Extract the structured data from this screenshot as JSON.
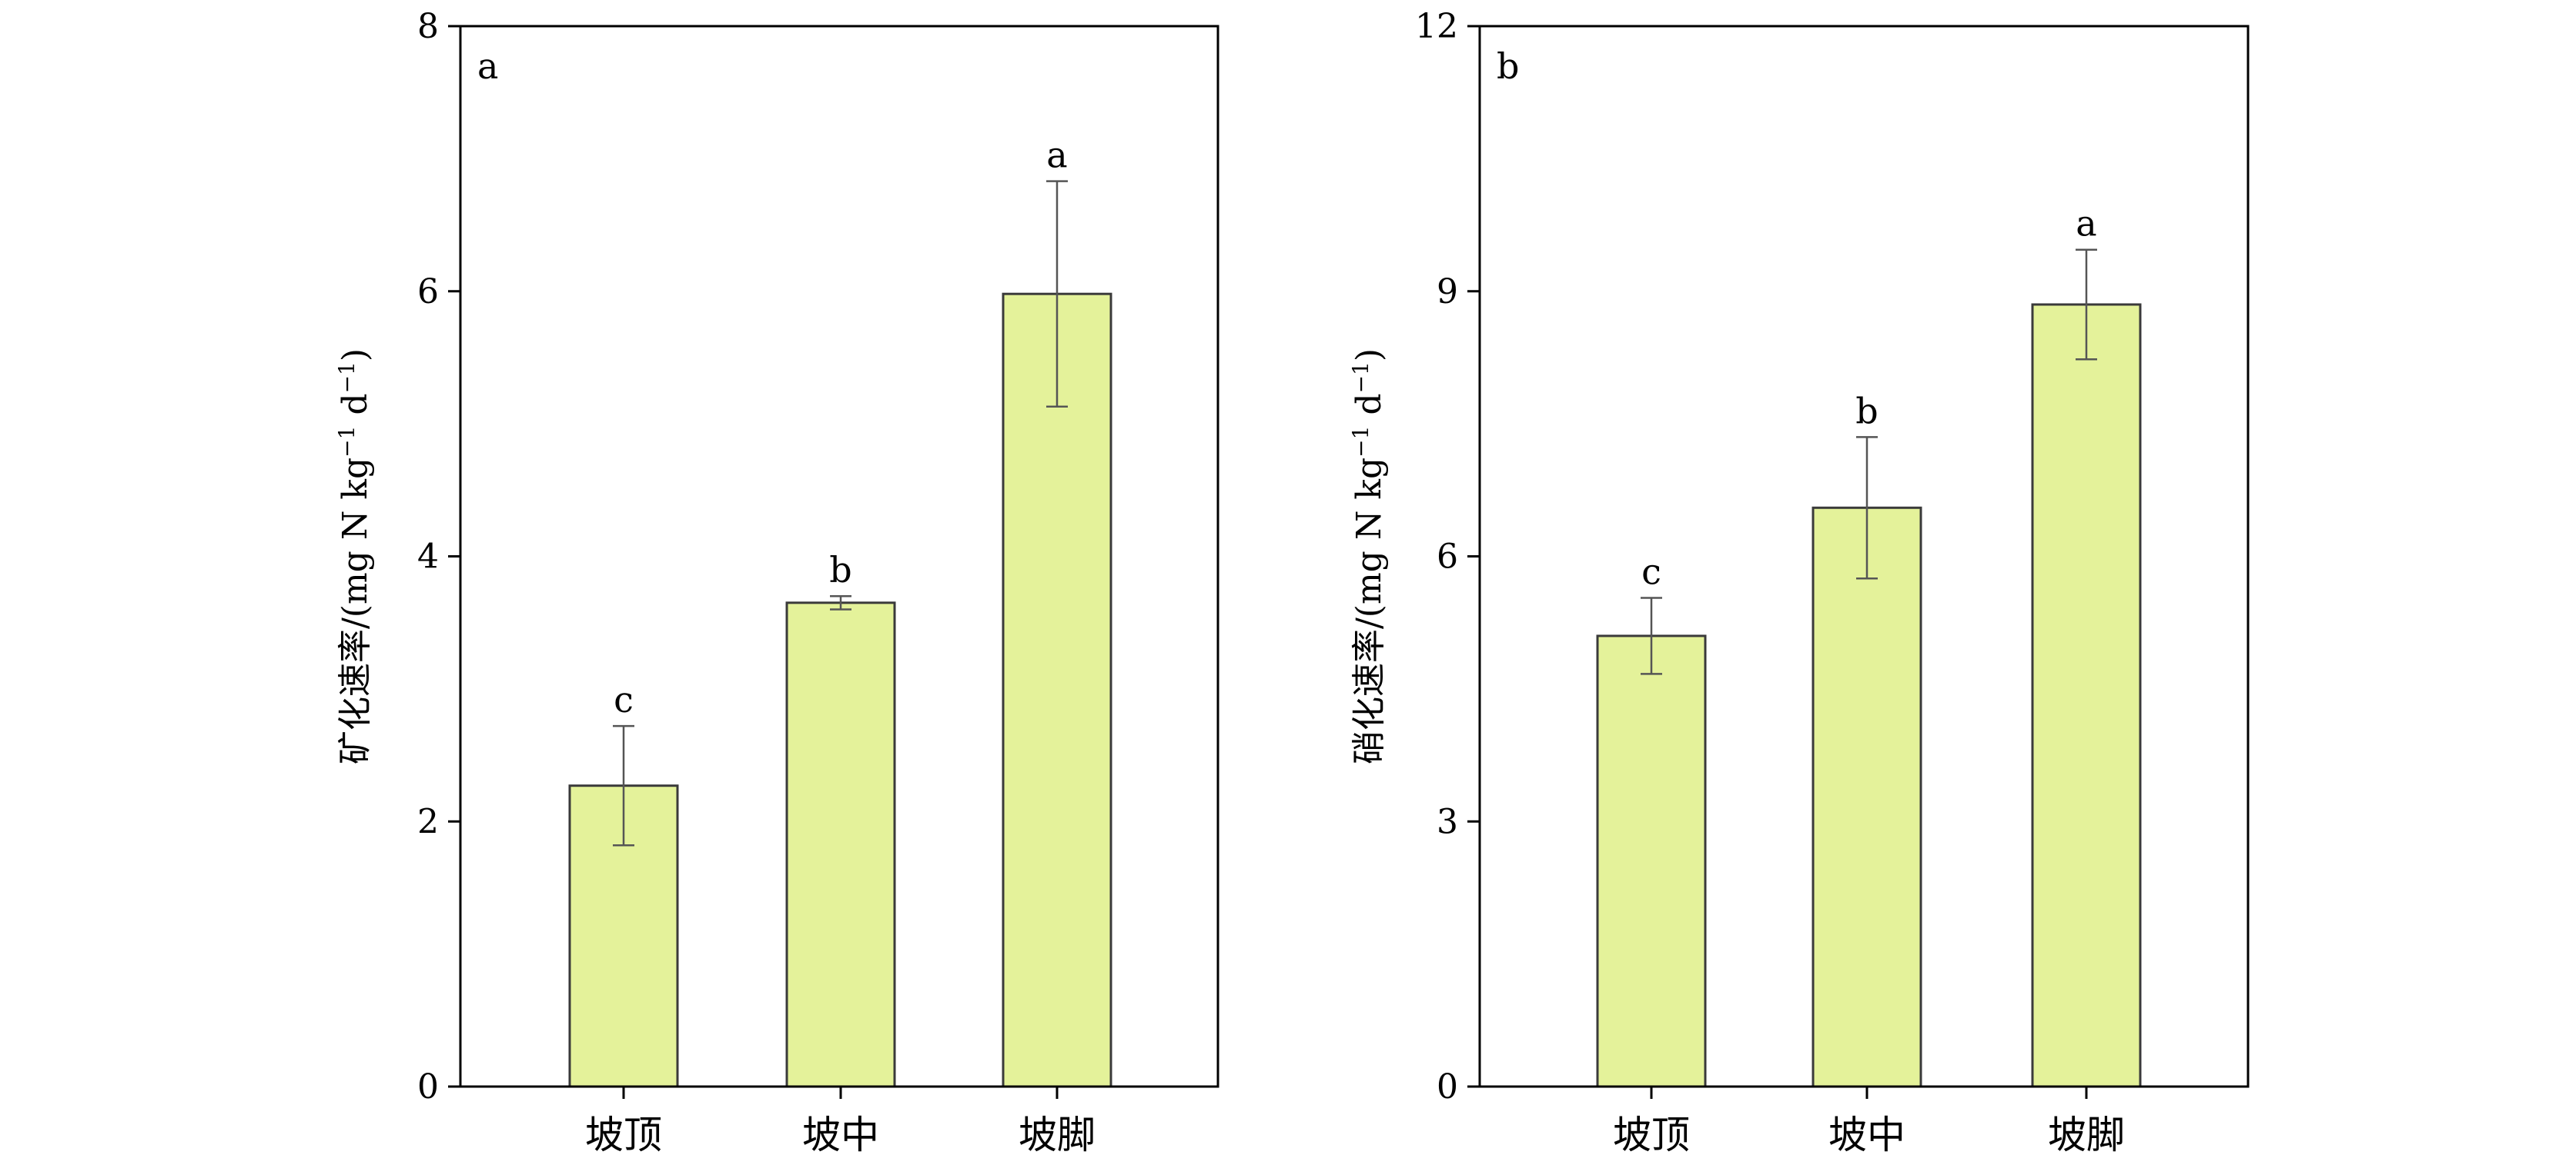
{
  "chart_data": [
    {
      "type": "bar",
      "panel_label": "a",
      "ylabel_main": "矿化速率/(mg N kg",
      "ylabel_sup1": "−1",
      "ylabel_mid": " d",
      "ylabel_sup2": "−1",
      "ylabel_end": ")",
      "categories": [
        "坡顶",
        "坡中",
        "坡脚"
      ],
      "values": [
        2.27,
        3.65,
        5.98
      ],
      "errors": [
        0.45,
        0.05,
        0.85
      ],
      "significance": [
        "c",
        "b",
        "a"
      ],
      "ylim": [
        0,
        8
      ],
      "yticks": [
        0,
        2,
        4,
        6,
        8
      ],
      "ytick_labels": [
        "0",
        "2",
        "4",
        "6",
        "8"
      ]
    },
    {
      "type": "bar",
      "panel_label": "b",
      "ylabel_main": "硝化速率/(mg N kg",
      "ylabel_sup1": "−1",
      "ylabel_mid": " d",
      "ylabel_sup2": "−1",
      "ylabel_end": ")",
      "categories": [
        "坡顶",
        "坡中",
        "坡脚"
      ],
      "values": [
        5.1,
        6.55,
        8.85
      ],
      "errors": [
        0.43,
        0.8,
        0.62
      ],
      "significance": [
        "c",
        "b",
        "a"
      ],
      "ylim": [
        0,
        12
      ],
      "yticks": [
        0,
        3,
        6,
        9,
        12
      ],
      "ytick_labels": [
        "0",
        "3",
        "6",
        "9",
        "12"
      ]
    }
  ],
  "style": {
    "bar_fill": "#e4f29a",
    "bar_stroke": "#3a3a3a",
    "axis_color": "#000000",
    "error_color": "#555555"
  }
}
